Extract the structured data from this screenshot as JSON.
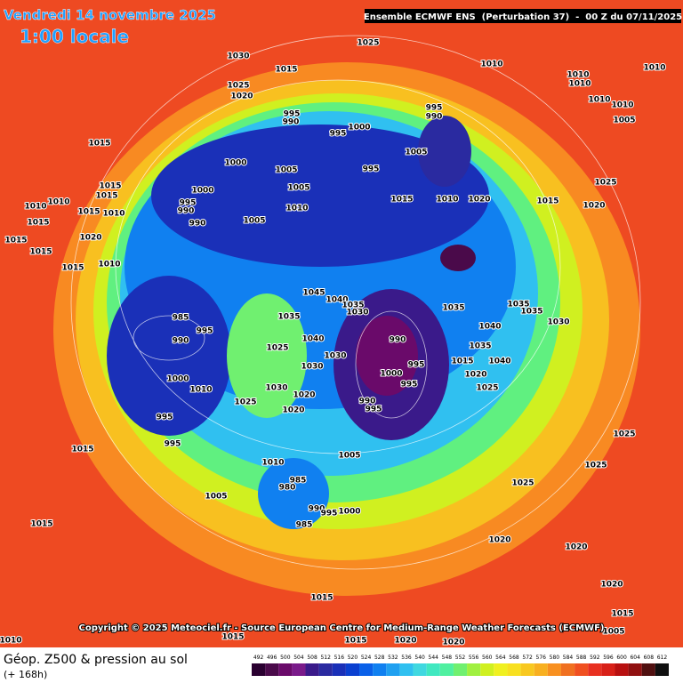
{
  "header": {
    "date": "Vendredi 14 novembre 2025",
    "time": "1:00 locale",
    "model": "Ensemble ECMWF ENS  (Perturbation 37)  -  00 Z du 07/11/2025"
  },
  "map": {
    "copyright": "Copyright © 2025 Meteociel.fr - Source European Centre for Medium-Range Weather Forecasts (ECMWF)",
    "isobar_labels": [
      "1030",
      "1015",
      "1025",
      "1020",
      "1025",
      "1010",
      "1010",
      "1010",
      "1010",
      "1010",
      "1010",
      "1005",
      "995",
      "990",
      "995",
      "1000",
      "995",
      "990",
      "1005",
      "995",
      "1000",
      "1005",
      "1005",
      "1015",
      "1015",
      "1015",
      "1010",
      "1010",
      "1015",
      "1010",
      "1000",
      "995",
      "990",
      "990",
      "1005",
      "1010",
      "1015",
      "1010",
      "1020",
      "1015",
      "1020",
      "1025",
      "1015",
      "1020",
      "1015",
      "1015",
      "1015",
      "1010",
      "985",
      "990",
      "995",
      "1000",
      "1010",
      "995",
      "995",
      "1015",
      "1045",
      "1040",
      "1035",
      "1030",
      "1035",
      "1040",
      "1030",
      "1030",
      "1030",
      "1025",
      "1020",
      "1025",
      "1020",
      "990",
      "995",
      "1000",
      "995",
      "990",
      "995",
      "1035",
      "1040",
      "1035",
      "1015",
      "1020",
      "1040",
      "1025",
      "1035",
      "1035",
      "1030",
      "1005",
      "1010",
      "985",
      "980",
      "990",
      "995",
      "1000",
      "985",
      "1005",
      "1015",
      "1025",
      "1020",
      "1020",
      "1015",
      "1010",
      "1015",
      "1015",
      "1020",
      "1020",
      "1015",
      "1005",
      "1020",
      "1025",
      "1025"
    ]
  },
  "footer": {
    "title": "Géop. Z500 & pression au sol",
    "lead": "(+ 168h)"
  },
  "colorbar": {
    "values": [
      492,
      496,
      500,
      504,
      508,
      512,
      516,
      520,
      524,
      528,
      532,
      536,
      540,
      544,
      548,
      552,
      556,
      560,
      564,
      568,
      572,
      576,
      580,
      584,
      588,
      592,
      596,
      600,
      604,
      608,
      612
    ],
    "colors": [
      "#2a0030",
      "#4a0a4a",
      "#6a0a6a",
      "#7a1a8a",
      "#3a1a8a",
      "#2a2aa0",
      "#1a30b8",
      "#0a40d0",
      "#0a60e8",
      "#1080f0",
      "#20a0f0",
      "#30c0f0",
      "#40d8e0",
      "#40e8c0",
      "#50f0a0",
      "#70f070",
      "#a0f040",
      "#d0f020",
      "#f0f020",
      "#f8e020",
      "#f8c820",
      "#f8b020",
      "#f89020",
      "#f07020",
      "#f05020",
      "#e83020",
      "#d82018",
      "#b81010",
      "#901010",
      "#501010",
      "#101010"
    ]
  }
}
